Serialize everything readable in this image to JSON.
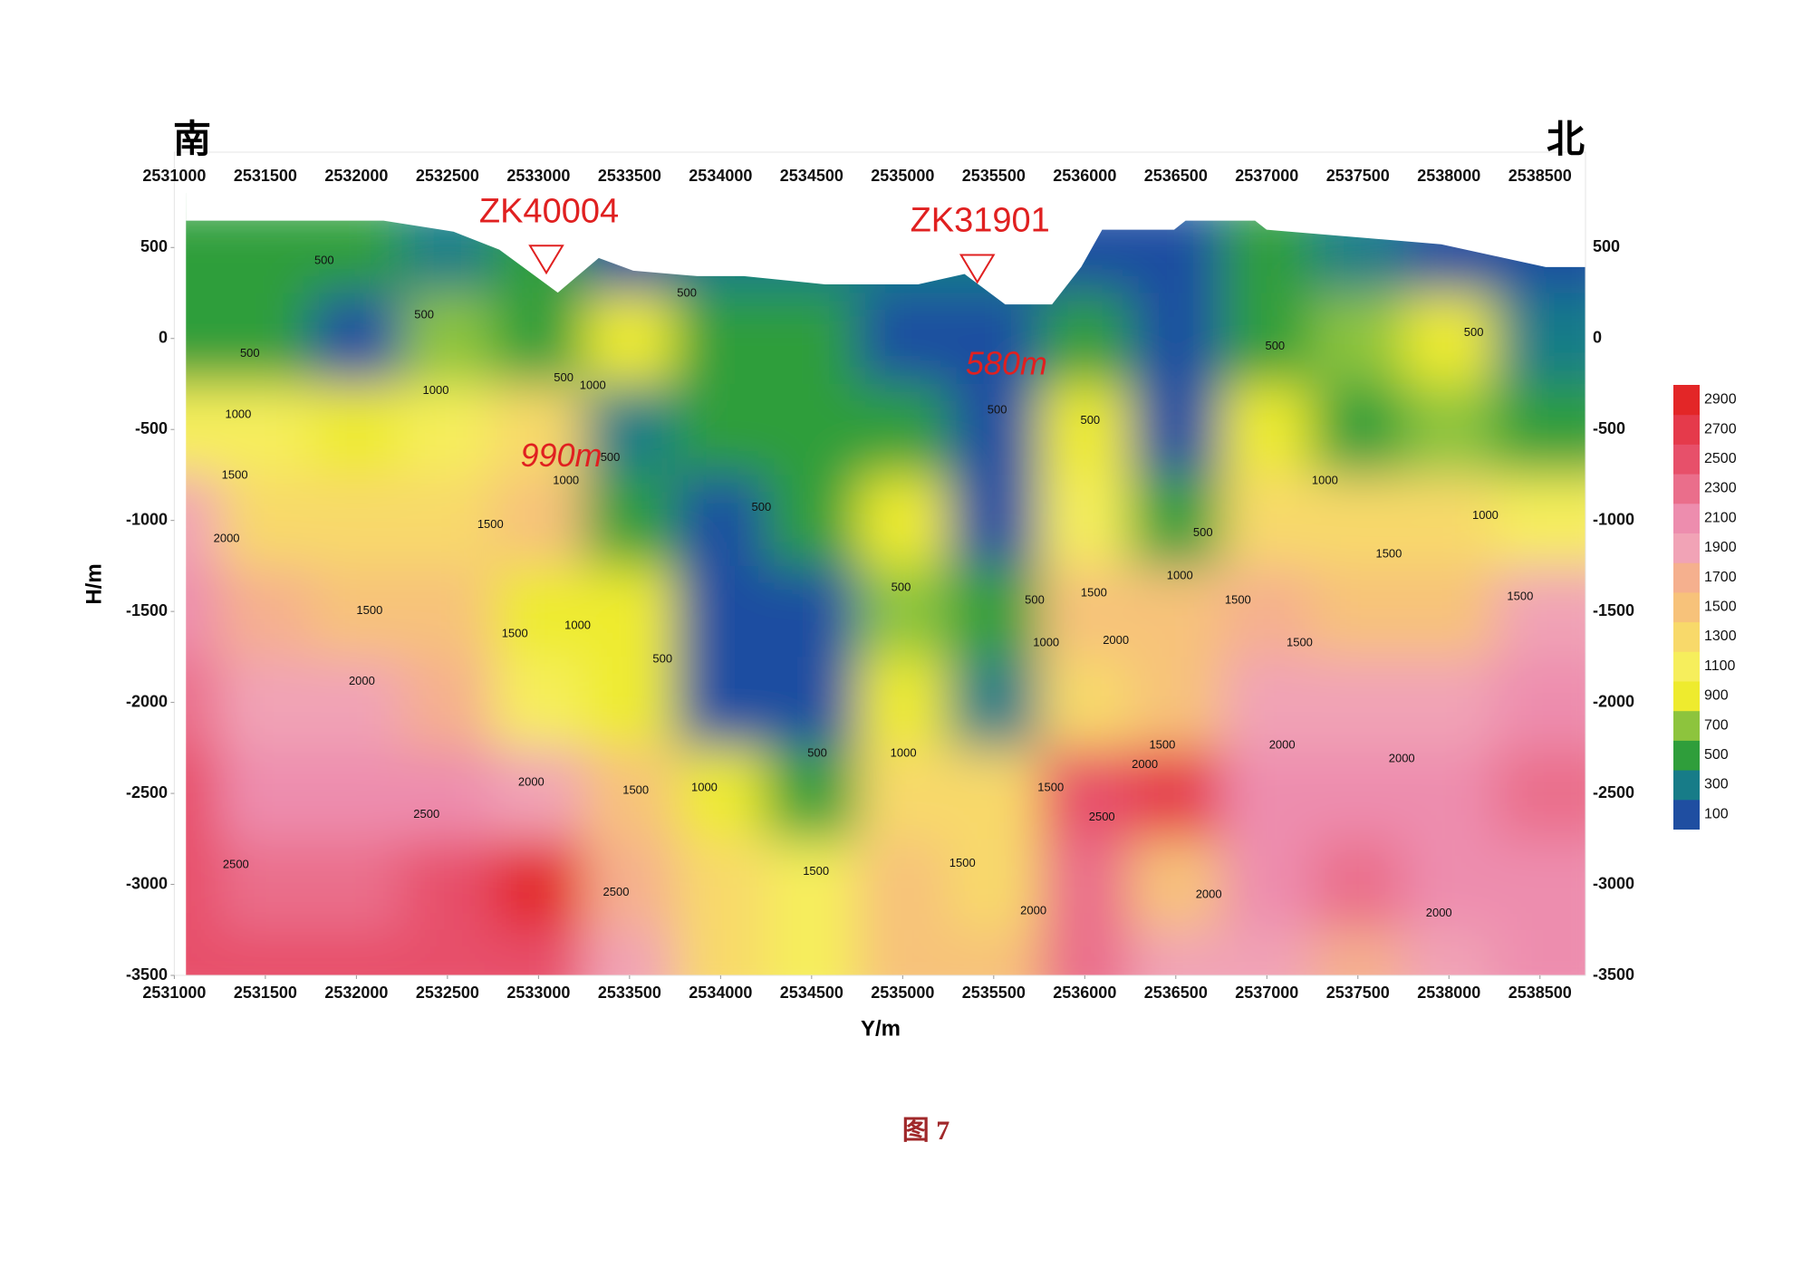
{
  "chart_data": {
    "type": "contour",
    "left_label": "南",
    "right_label": "北",
    "x_label": "Y/m",
    "y_label": "H/m",
    "caption": "图 7",
    "xlim": [
      2531000,
      2538750
    ],
    "ylim": [
      -3500,
      800
    ],
    "xticks": [
      2531000,
      2531500,
      2532000,
      2532500,
      2533000,
      2533500,
      2534000,
      2534500,
      2535000,
      2535500,
      2536000,
      2536500,
      2537000,
      2537500,
      2538000,
      2538500
    ],
    "yticks": [
      500,
      0,
      -500,
      -1000,
      -1500,
      -2000,
      -2500,
      -3000,
      -3500
    ],
    "grid_x": [
      2531000,
      2531500,
      2532000,
      2532500,
      2533000,
      2533500,
      2534000,
      2534500,
      2535000,
      2535500,
      2536000,
      2536500,
      2537000,
      2537500,
      2538000,
      2538500
    ],
    "grid_y": [
      500,
      0,
      -500,
      -1000,
      -1500,
      -2000,
      -2500,
      -3000,
      -3500
    ],
    "z": [
      [
        500,
        600,
        500,
        400,
        500,
        200,
        400,
        300,
        300,
        300,
        200,
        200,
        500,
        300,
        200,
        200
      ],
      [
        600,
        500,
        200,
        700,
        600,
        900,
        500,
        500,
        200,
        150,
        500,
        150,
        600,
        700,
        1000,
        300
      ],
      [
        1100,
        1100,
        1000,
        1100,
        1300,
        300,
        500,
        600,
        500,
        200,
        1000,
        200,
        900,
        600,
        700,
        500
      ],
      [
        1900,
        1400,
        1300,
        1400,
        1500,
        600,
        200,
        500,
        900,
        200,
        1100,
        500,
        1300,
        1300,
        1300,
        1100
      ],
      [
        2100,
        1700,
        1500,
        1500,
        1000,
        900,
        150,
        150,
        800,
        500,
        1500,
        1600,
        1700,
        1500,
        1500,
        2000
      ],
      [
        2300,
        2000,
        1900,
        1700,
        1100,
        900,
        200,
        200,
        1000,
        400,
        1300,
        1500,
        2000,
        1900,
        1900,
        2100
      ],
      [
        2500,
        2100,
        2100,
        2200,
        2000,
        1500,
        1000,
        500,
        1300,
        1300,
        2600,
        2700,
        2200,
        2100,
        2200,
        2300
      ],
      [
        2500,
        2400,
        2300,
        2600,
        2900,
        1700,
        1300,
        1100,
        1500,
        1300,
        2300,
        1500,
        2100,
        2300,
        2200,
        2200
      ],
      [
        2600,
        2500,
        2500,
        2500,
        2600,
        1900,
        1400,
        1100,
        1500,
        1500,
        2400,
        2000,
        2000,
        1700,
        2000,
        2100
      ]
    ],
    "surface": {
      "x": [
        2531064,
        2532149,
        2532532,
        2532787,
        2533106,
        2533330,
        2533521,
        2533872,
        2534128,
        2534574,
        2535085,
        2535340,
        2535564,
        2535819,
        2535979,
        2536094,
        2536490,
        2536553,
        2536936,
        2537000,
        2537958,
        2538532,
        2538750
      ],
      "y": [
        650,
        650,
        590,
        490,
        255,
        445,
        375,
        345,
        345,
        300,
        300,
        357,
        190,
        190,
        395,
        600,
        600,
        650,
        650,
        600,
        520,
        395,
        395
      ]
    },
    "colorbar": {
      "levels": [
        100,
        300,
        500,
        700,
        900,
        1100,
        1300,
        1500,
        1700,
        1900,
        2100,
        2300,
        2500,
        2700,
        2900
      ],
      "colors": [
        "#1f4ea1",
        "#177c88",
        "#2f9e3b",
        "#8dc43d",
        "#eeeb2e",
        "#f6ee5c",
        "#f8d96a",
        "#f7c27a",
        "#f5b08e",
        "#f1a3b6",
        "#ed8dae",
        "#ea6e8b",
        "#e7506a",
        "#e53a4b",
        "#e32627"
      ]
    },
    "boreholes": [
      {
        "name": "ZK40004",
        "x": 2533043,
        "y": 510
      },
      {
        "name": "ZK31901",
        "x": 2535410,
        "y": 459
      }
    ],
    "depth_labels": [
      {
        "text": "990m",
        "x": 2533125,
        "y": -655
      },
      {
        "text": "580m",
        "x": 2535570,
        "y": -150
      }
    ],
    "contour_labels": [
      {
        "value": 500,
        "x": 2531823,
        "y": 427
      },
      {
        "value": 500,
        "x": 2532372,
        "y": 127
      },
      {
        "value": 500,
        "x": 2531415,
        "y": -83
      },
      {
        "value": 1000,
        "x": 2532436,
        "y": -287
      },
      {
        "value": 1000,
        "x": 2531351,
        "y": -420
      },
      {
        "value": 1500,
        "x": 2531332,
        "y": -752
      },
      {
        "value": 2000,
        "x": 2531287,
        "y": -1102
      },
      {
        "value": 1500,
        "x": 2532736,
        "y": -1025
      },
      {
        "value": 1500,
        "x": 2532072,
        "y": -1497
      },
      {
        "value": 1500,
        "x": 2532870,
        "y": -1624
      },
      {
        "value": 2000,
        "x": 2532030,
        "y": -1885
      },
      {
        "value": 1000,
        "x": 2533215,
        "y": -1580
      },
      {
        "value": 1000,
        "x": 2533151,
        "y": -783
      },
      {
        "value": 500,
        "x": 2533138,
        "y": -217
      },
      {
        "value": 1000,
        "x": 2533298,
        "y": -261
      },
      {
        "value": 500,
        "x": 2533394,
        "y": -656
      },
      {
        "value": 500,
        "x": 2533815,
        "y": 248
      },
      {
        "value": 500,
        "x": 2534224,
        "y": -930
      },
      {
        "value": 500,
        "x": 2533681,
        "y": -1764
      },
      {
        "value": 2000,
        "x": 2532960,
        "y": -2439
      },
      {
        "value": 2500,
        "x": 2532385,
        "y": -2618
      },
      {
        "value": 2500,
        "x": 2531338,
        "y": -2892
      },
      {
        "value": 2500,
        "x": 2533426,
        "y": -3045
      },
      {
        "value": 1500,
        "x": 2533534,
        "y": -2484
      },
      {
        "value": 1000,
        "x": 2533911,
        "y": -2471
      },
      {
        "value": 500,
        "x": 2534531,
        "y": -2280
      },
      {
        "value": 500,
        "x": 2534991,
        "y": -1369
      },
      {
        "value": 1000,
        "x": 2535004,
        "y": -2280
      },
      {
        "value": 1500,
        "x": 2534524,
        "y": -2930
      },
      {
        "value": 1500,
        "x": 2535328,
        "y": -2885
      },
      {
        "value": 2000,
        "x": 2535718,
        "y": -3146
      },
      {
        "value": 500,
        "x": 2535725,
        "y": -1439
      },
      {
        "value": 1000,
        "x": 2535788,
        "y": -1675
      },
      {
        "value": 1500,
        "x": 2536050,
        "y": -1401
      },
      {
        "value": 2000,
        "x": 2536171,
        "y": -1662
      },
      {
        "value": 1500,
        "x": 2535813,
        "y": -2471
      },
      {
        "value": 2500,
        "x": 2536094,
        "y": -2631
      },
      {
        "value": 500,
        "x": 2535519,
        "y": -395
      },
      {
        "value": 500,
        "x": 2536030,
        "y": -452
      },
      {
        "value": 1500,
        "x": 2536426,
        "y": -2236
      },
      {
        "value": 2000,
        "x": 2536330,
        "y": -2344
      },
      {
        "value": 1000,
        "x": 2536522,
        "y": -1306
      },
      {
        "value": 500,
        "x": 2536649,
        "y": -1070
      },
      {
        "value": 1500,
        "x": 2536841,
        "y": -1439
      },
      {
        "value": 2000,
        "x": 2537084,
        "y": -2236
      },
      {
        "value": 1500,
        "x": 2537180,
        "y": -1675
      },
      {
        "value": 2000,
        "x": 2536681,
        "y": -3057
      },
      {
        "value": 500,
        "x": 2537045,
        "y": -45
      },
      {
        "value": 1000,
        "x": 2537319,
        "y": -783
      },
      {
        "value": 1500,
        "x": 2537670,
        "y": -1185
      },
      {
        "value": 500,
        "x": 2538136,
        "y": 32
      },
      {
        "value": 1000,
        "x": 2538200,
        "y": -975
      },
      {
        "value": 1500,
        "x": 2538391,
        "y": -1420
      },
      {
        "value": 2000,
        "x": 2537741,
        "y": -2312
      },
      {
        "value": 2000,
        "x": 2537945,
        "y": -3159
      }
    ]
  }
}
